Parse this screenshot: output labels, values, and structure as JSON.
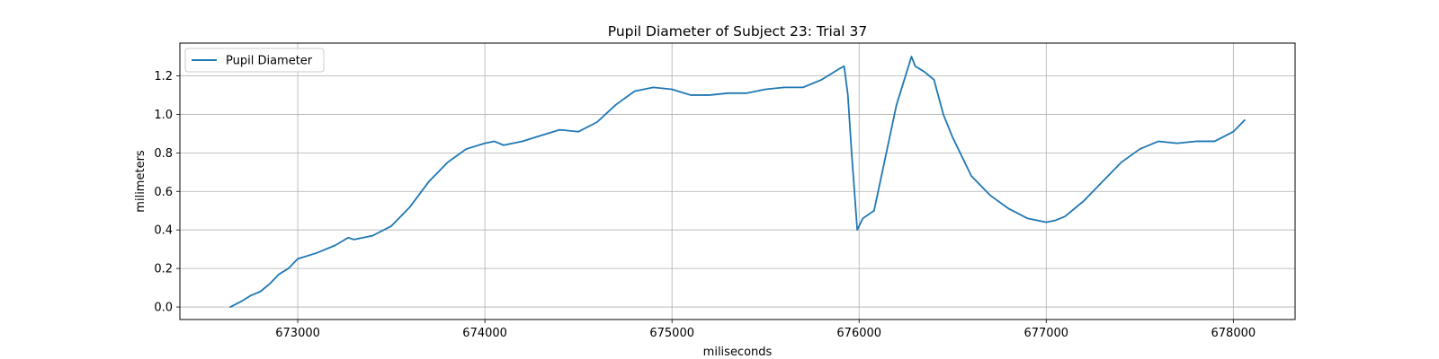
{
  "chart_data": {
    "type": "line",
    "title": "Pupil Diameter of Subject 23: Trial 37",
    "xlabel": "miliseconds",
    "ylabel": "milimeters",
    "xlim": [
      672370,
      678330
    ],
    "ylim": [
      -0.065,
      1.37
    ],
    "xticks": [
      673000,
      674000,
      675000,
      676000,
      677000,
      678000
    ],
    "yticks": [
      0.0,
      0.2,
      0.4,
      0.6,
      0.8,
      1.0,
      1.2
    ],
    "xtick_labels": [
      "673000",
      "674000",
      "675000",
      "676000",
      "677000",
      "678000"
    ],
    "ytick_labels": [
      "0.0",
      "0.2",
      "0.4",
      "0.6",
      "0.8",
      "1.0",
      "1.2"
    ],
    "grid": true,
    "legend_position": "top-left",
    "color": "#1f77b4",
    "series": [
      {
        "name": "Pupil Diameter",
        "x": [
          672640,
          672700,
          672750,
          672800,
          672850,
          672900,
          672950,
          673000,
          673100,
          673200,
          673270,
          673300,
          673400,
          673500,
          673600,
          673700,
          673800,
          673900,
          674000,
          674050,
          674100,
          674200,
          674300,
          674400,
          674500,
          674600,
          674700,
          674800,
          674900,
          675000,
          675100,
          675200,
          675300,
          675400,
          675500,
          675600,
          675700,
          675800,
          675900,
          675920,
          675940,
          675960,
          675990,
          676000,
          676020,
          676080,
          676200,
          676280,
          676300,
          676350,
          676400,
          676450,
          676500,
          676600,
          676700,
          676800,
          676900,
          677000,
          677050,
          677100,
          677200,
          677300,
          677400,
          677500,
          677600,
          677700,
          677800,
          677900,
          678000,
          678060
        ],
        "y": [
          0.0,
          0.03,
          0.06,
          0.08,
          0.12,
          0.17,
          0.2,
          0.25,
          0.28,
          0.32,
          0.36,
          0.35,
          0.37,
          0.42,
          0.52,
          0.65,
          0.75,
          0.82,
          0.85,
          0.86,
          0.84,
          0.86,
          0.89,
          0.92,
          0.91,
          0.96,
          1.05,
          1.12,
          1.14,
          1.13,
          1.1,
          1.1,
          1.11,
          1.11,
          1.13,
          1.14,
          1.14,
          1.18,
          1.24,
          1.25,
          1.1,
          0.8,
          0.4,
          0.42,
          0.46,
          0.5,
          1.05,
          1.3,
          1.25,
          1.22,
          1.18,
          1.0,
          0.88,
          0.68,
          0.58,
          0.51,
          0.46,
          0.44,
          0.45,
          0.47,
          0.55,
          0.65,
          0.75,
          0.82,
          0.86,
          0.85,
          0.86,
          0.86,
          0.91,
          0.97
        ]
      }
    ]
  }
}
